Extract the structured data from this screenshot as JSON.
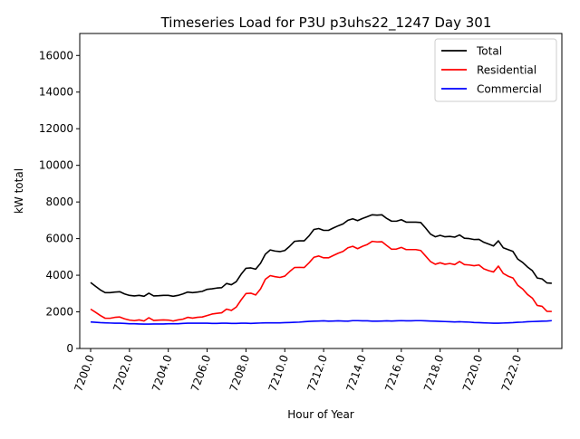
{
  "chart_data": {
    "type": "line",
    "title": "Timeseries Load for P3U p3uhs22_1247  Day 301",
    "xlabel": "Hour of Year",
    "ylabel": "kW total",
    "xlim": [
      7199.44,
      7224.27
    ],
    "ylim": [
      0,
      17200
    ],
    "x_ticks": [
      7200,
      7202,
      7204,
      7206,
      7208,
      7210,
      7212,
      7214,
      7216,
      7218,
      7220,
      7222
    ],
    "x_tick_labels": [
      "7200.0",
      "7202.0",
      "7204.0",
      "7206.0",
      "7208.0",
      "7210.0",
      "7212.0",
      "7214.0",
      "7216.0",
      "7218.0",
      "7220.0",
      "7222.0"
    ],
    "y_ticks": [
      0,
      2000,
      4000,
      6000,
      8000,
      10000,
      12000,
      14000,
      16000
    ],
    "y_tick_labels": [
      "0",
      "2000",
      "4000",
      "6000",
      "8000",
      "10000",
      "12000",
      "14000",
      "16000"
    ],
    "grid": false,
    "legend_position": "top-right",
    "x_start": 7200,
    "x_step": 0.25,
    "series": [
      {
        "name": "Total",
        "color": "#000000",
        "values": [
          3600,
          3400,
          3200,
          3050,
          3050,
          3080,
          3100,
          2980,
          2900,
          2870,
          2900,
          2850,
          3020,
          2870,
          2880,
          2900,
          2900,
          2850,
          2900,
          2980,
          3080,
          3050,
          3080,
          3120,
          3230,
          3260,
          3300,
          3320,
          3550,
          3480,
          3650,
          4050,
          4380,
          4400,
          4330,
          4650,
          5150,
          5380,
          5320,
          5290,
          5350,
          5580,
          5850,
          5880,
          5880,
          6150,
          6500,
          6550,
          6450,
          6450,
          6580,
          6700,
          6800,
          7000,
          7080,
          6980,
          7100,
          7200,
          7300,
          7280,
          7300,
          7100,
          6950,
          6950,
          7030,
          6900,
          6900,
          6900,
          6880,
          6580,
          6250,
          6100,
          6180,
          6100,
          6120,
          6080,
          6200,
          6020,
          6000,
          5950,
          5960,
          5800,
          5700,
          5600,
          5880,
          5500,
          5400,
          5300,
          4880,
          4700,
          4450,
          4250,
          3850,
          3800,
          3580,
          3560
        ]
      },
      {
        "name": "Residential",
        "color": "#ff0000",
        "values": [
          2150,
          1980,
          1800,
          1650,
          1650,
          1700,
          1720,
          1620,
          1550,
          1520,
          1560,
          1500,
          1680,
          1530,
          1550,
          1560,
          1550,
          1500,
          1560,
          1600,
          1700,
          1660,
          1700,
          1720,
          1800,
          1880,
          1920,
          1950,
          2150,
          2080,
          2260,
          2650,
          3000,
          3020,
          2920,
          3250,
          3780,
          3980,
          3920,
          3880,
          3950,
          4200,
          4420,
          4430,
          4420,
          4680,
          4980,
          5050,
          4950,
          4950,
          5080,
          5200,
          5300,
          5500,
          5580,
          5450,
          5580,
          5680,
          5850,
          5820,
          5830,
          5620,
          5420,
          5430,
          5520,
          5400,
          5400,
          5400,
          5350,
          5050,
          4750,
          4600,
          4680,
          4600,
          4640,
          4580,
          4750,
          4580,
          4560,
          4520,
          4560,
          4350,
          4250,
          4180,
          4500,
          4100,
          3950,
          3850,
          3450,
          3250,
          2950,
          2750,
          2350,
          2300,
          2030,
          2020
        ]
      },
      {
        "name": "Commercial",
        "color": "#0000ff",
        "values": [
          1450,
          1430,
          1410,
          1400,
          1390,
          1380,
          1380,
          1370,
          1350,
          1350,
          1340,
          1330,
          1330,
          1340,
          1340,
          1340,
          1350,
          1350,
          1350,
          1370,
          1380,
          1380,
          1380,
          1380,
          1380,
          1370,
          1370,
          1380,
          1380,
          1370,
          1370,
          1380,
          1380,
          1370,
          1380,
          1390,
          1400,
          1400,
          1400,
          1400,
          1410,
          1420,
          1430,
          1440,
          1460,
          1480,
          1490,
          1500,
          1510,
          1490,
          1500,
          1510,
          1500,
          1490,
          1520,
          1520,
          1510,
          1510,
          1490,
          1490,
          1500,
          1510,
          1500,
          1510,
          1520,
          1510,
          1510,
          1520,
          1520,
          1510,
          1500,
          1490,
          1480,
          1470,
          1460,
          1450,
          1460,
          1450,
          1440,
          1420,
          1410,
          1400,
          1390,
          1380,
          1380,
          1390,
          1400,
          1410,
          1430,
          1440,
          1460,
          1470,
          1480,
          1490,
          1500,
          1520
        ]
      }
    ]
  }
}
